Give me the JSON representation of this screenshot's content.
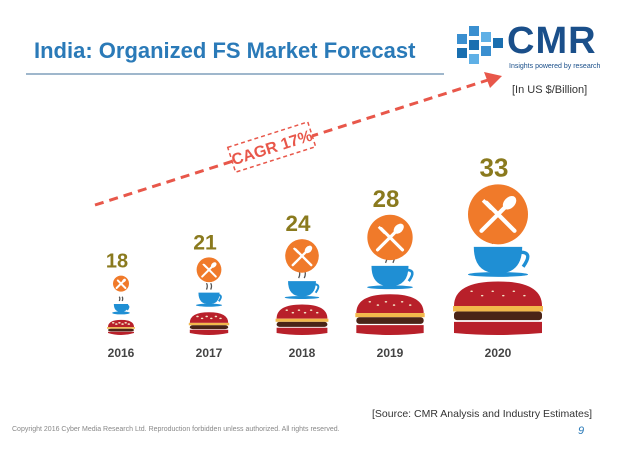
{
  "header": {
    "title": "India: Organized FS Market Forecast",
    "logo_text": "CMR",
    "logo_tagline": "Insights powered by research"
  },
  "unit_note": "[In US $/Billion]",
  "source_note": "[Source: CMR Analysis and Industry Estimates]",
  "footer": {
    "copyright": "Copyright 2016 Cyber Media Research Ltd. Reproduction forbidden unless authorized. All rights reserved.",
    "page_number": "9"
  },
  "colors": {
    "title": "#2a7ab8",
    "value_text": "#8a7a1e",
    "fork_circle": "#f07a2a",
    "cup": "#1f8fd4",
    "bun": "#b8202a",
    "cagr": "#e8574a"
  },
  "icons": [
    "fork-spoon-icon",
    "coffee-cup-icon",
    "burger-icon",
    "cmr-logo-icon"
  ],
  "chart_data": {
    "type": "bar",
    "title": "India: Organized FS Market Forecast",
    "unit": "[In US $/Billion]",
    "categories": [
      "2016",
      "2017",
      "2018",
      "2019",
      "2020"
    ],
    "values": [
      18,
      21,
      24,
      28,
      33
    ],
    "annotation": "CAGR 17%"
  }
}
